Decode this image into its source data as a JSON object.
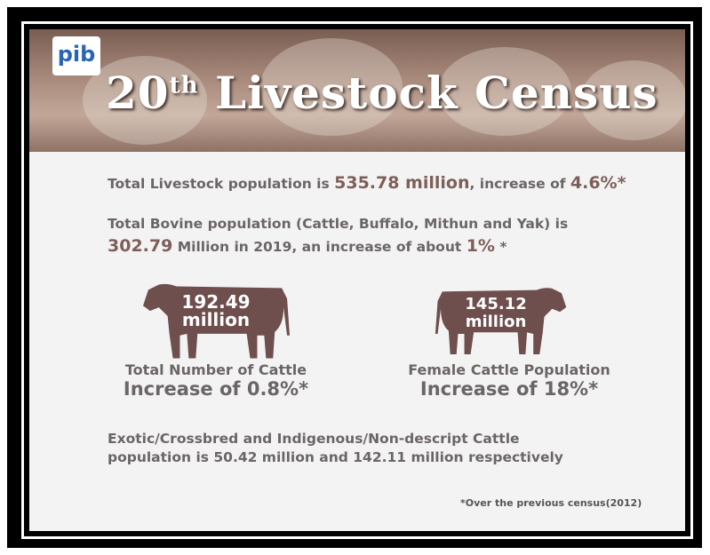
{
  "header": {
    "logo": "pib",
    "title_number": "20",
    "title_suffix": "th",
    "title_text": "Livestock Census"
  },
  "fact1": {
    "text": "Total Livestock population is",
    "value": "535.78 million",
    "middle": ", increase of",
    "change": "4.6%*"
  },
  "fact2": {
    "line1": "Total Bovine population (Cattle, Buffalo, Mithun and Yak) is",
    "value": "302.79",
    "middle": "Million in 2019,  an increase of about",
    "change": "1%",
    "mark": "*"
  },
  "cows": [
    {
      "number": "192.49",
      "unit": "million",
      "label": "Total Number of Cattle",
      "change": "Increase of 0.8%*"
    },
    {
      "number": "145.12",
      "unit": "million",
      "label": "Female Cattle Population",
      "change": "Increase of 18%*"
    }
  ],
  "breeds": {
    "line1": "Exotic/Crossbred and Indigenous/Non-descript Cattle",
    "line2": "population is 50.42 million and 142.11 million respectively"
  },
  "footnote": "*Over the previous census(2012)"
}
